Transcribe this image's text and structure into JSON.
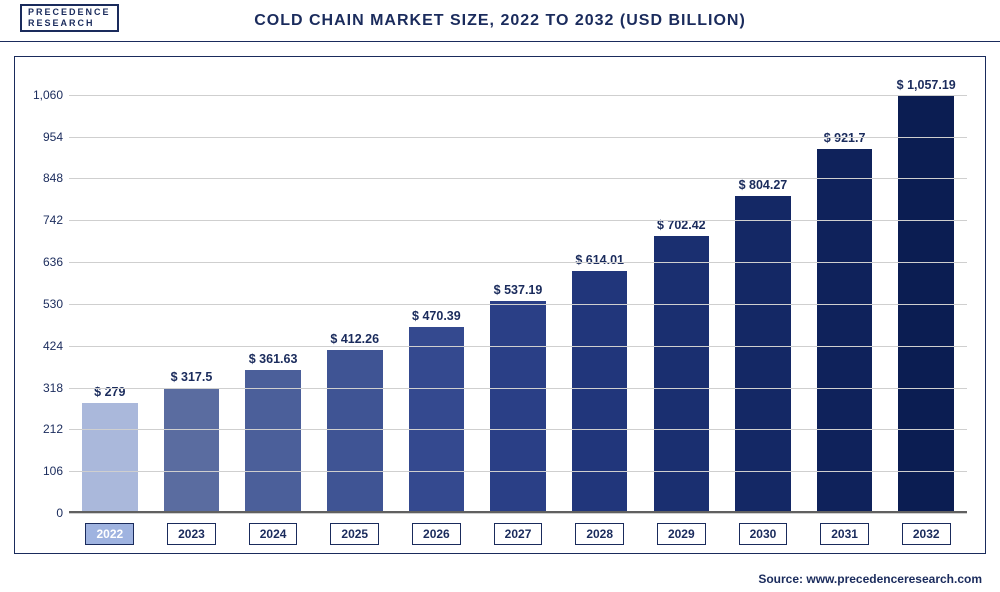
{
  "logo": {
    "line1": "PRECEDENCE",
    "line2": "RESEARCH"
  },
  "title": "COLD CHAIN MARKET SIZE, 2022 TO 2032 (USD BILLION)",
  "source": "Source: www.precedenceresearch.com",
  "chart": {
    "type": "bar",
    "ylim": [
      0,
      1100
    ],
    "yticks": [
      0,
      106,
      212,
      318,
      424,
      530,
      636,
      742,
      848,
      954,
      1060
    ],
    "grid_color": "#cfcfcf",
    "axis_color": "#1a2b5c",
    "label_fontsize": 12,
    "bar_width_pct": 68,
    "categories": [
      "2022",
      "2023",
      "2024",
      "2025",
      "2026",
      "2027",
      "2028",
      "2029",
      "2030",
      "2031",
      "2032"
    ],
    "values": [
      279,
      317.5,
      361.63,
      412.26,
      470.39,
      537.19,
      614.01,
      702.42,
      804.27,
      921.7,
      1057.19
    ],
    "value_labels": [
      "$ 279",
      "$ 317.5",
      "$ 361.63",
      "$ 412.26",
      "$ 470.39",
      "$ 537.19",
      "$ 614.01",
      "$ 702.42",
      "$ 804.27",
      "$ 921.7",
      "$ 1,057.19"
    ],
    "bar_colors": [
      "#aab8db",
      "#5a6ca0",
      "#4b5f9a",
      "#3f5494",
      "#34498f",
      "#2a3f86",
      "#21367b",
      "#1a2f70",
      "#142865",
      "#0f225b",
      "#0b1d52"
    ],
    "highlight_index": 0,
    "ytick_labels": [
      "0",
      "106",
      "212",
      "318",
      "424",
      "530",
      "636",
      "742",
      "848",
      "954",
      "1,060"
    ]
  }
}
